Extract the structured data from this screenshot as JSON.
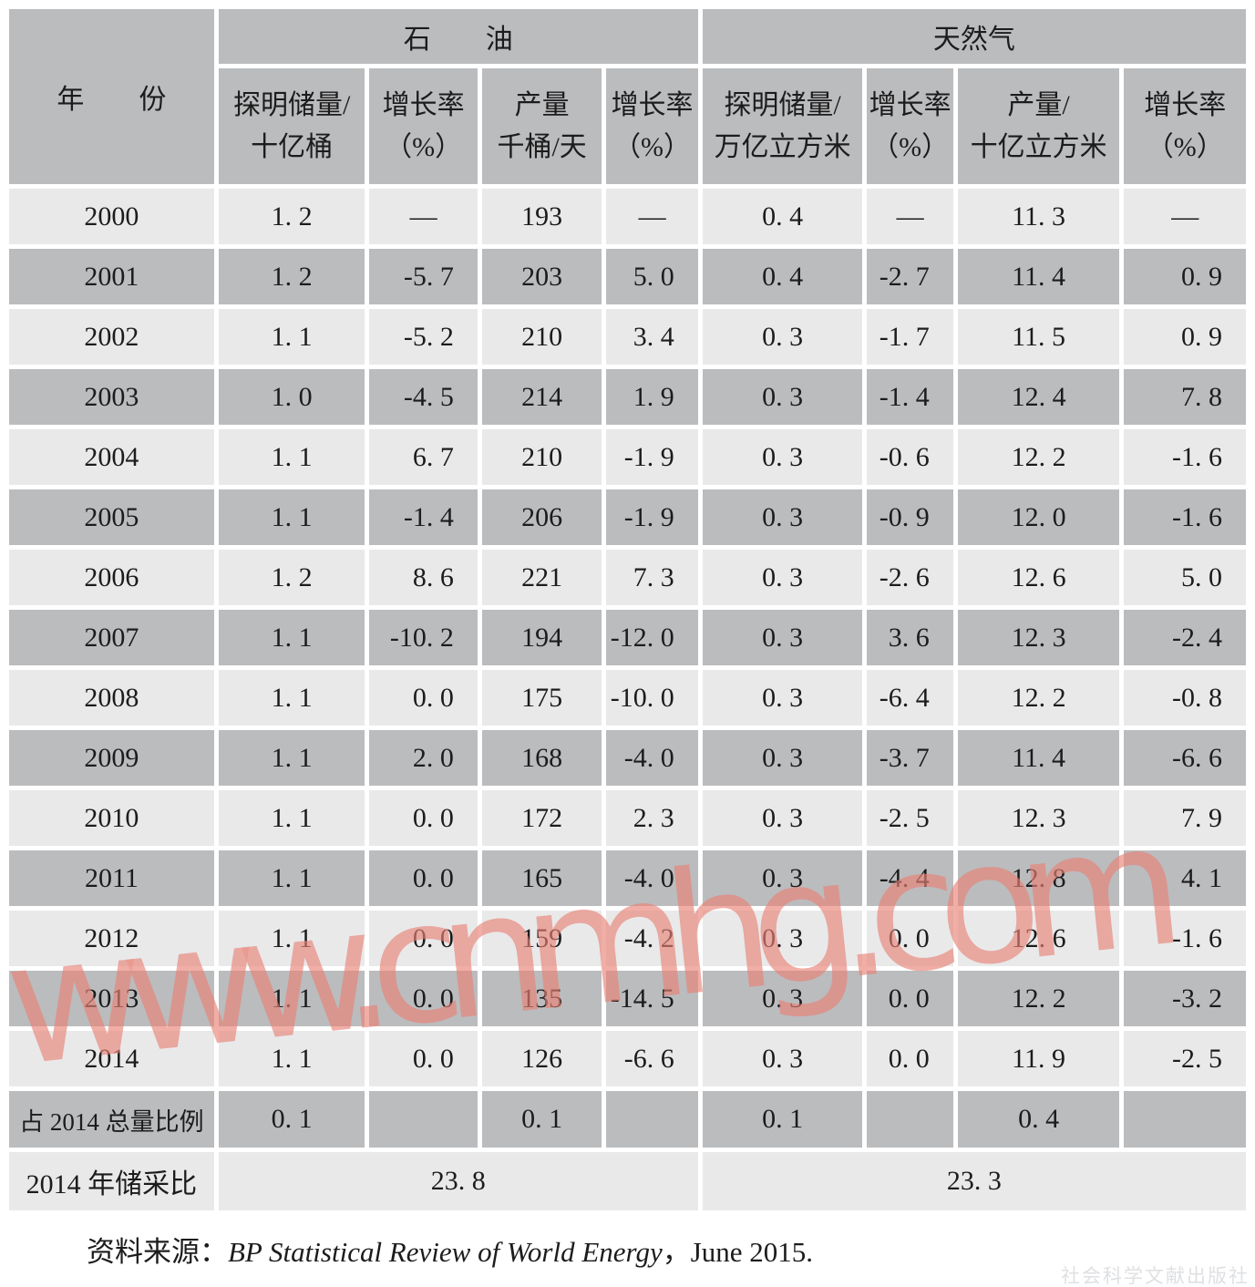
{
  "colors": {
    "dark_cell": "#bbbcbe",
    "light_cell": "#e9e9ea",
    "text": "#1c1c1c",
    "watermark": "rgba(232,130,118,0.8)"
  },
  "table": {
    "header": {
      "year_label": "年　　份",
      "oil_label": "石　　油",
      "gas_label": "天然气",
      "subcols": [
        {
          "line1": "探明储量/",
          "line2": "十亿桶"
        },
        {
          "line1": "增长率",
          "line2": "（%）"
        },
        {
          "line1": "产量",
          "line2": "千桶/天"
        },
        {
          "line1": "增长率",
          "line2": "（%）"
        },
        {
          "line1": "探明储量/",
          "line2": "万亿立方米"
        },
        {
          "line1": "增长率",
          "line2": "（%）"
        },
        {
          "line1": "产量/",
          "line2": "十亿立方米"
        },
        {
          "line1": "增长率",
          "line2": "（%）"
        }
      ]
    },
    "rows": [
      [
        "2000",
        "1. 2",
        "—",
        "193",
        "—",
        "0. 4",
        "—",
        "11. 3",
        "—"
      ],
      [
        "2001",
        "1. 2",
        "-5. 7",
        "203",
        "5. 0",
        "0. 4",
        "-2. 7",
        "11. 4",
        "0. 9"
      ],
      [
        "2002",
        "1. 1",
        "-5. 2",
        "210",
        "3. 4",
        "0. 3",
        "-1. 7",
        "11. 5",
        "0. 9"
      ],
      [
        "2003",
        "1. 0",
        "-4. 5",
        "214",
        "1. 9",
        "0. 3",
        "-1. 4",
        "12. 4",
        "7. 8"
      ],
      [
        "2004",
        "1. 1",
        "6. 7",
        "210",
        "-1. 9",
        "0. 3",
        "-0. 6",
        "12. 2",
        "-1. 6"
      ],
      [
        "2005",
        "1. 1",
        "-1. 4",
        "206",
        "-1. 9",
        "0. 3",
        "-0. 9",
        "12. 0",
        "-1. 6"
      ],
      [
        "2006",
        "1. 2",
        "8. 6",
        "221",
        "7. 3",
        "0. 3",
        "-2. 6",
        "12. 6",
        "5. 0"
      ],
      [
        "2007",
        "1. 1",
        "-10. 2",
        "194",
        "-12. 0",
        "0. 3",
        "3. 6",
        "12. 3",
        "-2. 4"
      ],
      [
        "2008",
        "1. 1",
        "0. 0",
        "175",
        "-10. 0",
        "0. 3",
        "-6. 4",
        "12. 2",
        "-0. 8"
      ],
      [
        "2009",
        "1. 1",
        "2. 0",
        "168",
        "-4. 0",
        "0. 3",
        "-3. 7",
        "11. 4",
        "-6. 6"
      ],
      [
        "2010",
        "1. 1",
        "0. 0",
        "172",
        "2. 3",
        "0. 3",
        "-2. 5",
        "12. 3",
        "7. 9"
      ],
      [
        "2011",
        "1. 1",
        "0. 0",
        "165",
        "-4. 0",
        "0. 3",
        "-4. 4",
        "12. 8",
        "4. 1"
      ],
      [
        "2012",
        "1. 1",
        "0. 0",
        "159",
        "-4. 2",
        "0. 3",
        "0. 0",
        "12. 6",
        "-1. 6"
      ],
      [
        "2013",
        "1. 1",
        "0. 0",
        "135",
        "-14. 5",
        "0. 3",
        "0. 0",
        "12. 2",
        "-3. 2"
      ],
      [
        "2014",
        "1. 1",
        "0. 0",
        "126",
        "-6. 6",
        "0. 3",
        "0. 0",
        "11. 9",
        "-2. 5"
      ]
    ],
    "share_row": {
      "label": "占 2014 总量比例",
      "values": [
        "0. 1",
        "",
        "0. 1",
        "",
        "0. 1",
        "",
        "0. 4",
        ""
      ]
    },
    "ratio_row": {
      "label": "2014 年储采比",
      "oil_value": "23. 8",
      "gas_value": "23. 3"
    }
  },
  "footer": {
    "source_prefix": "资料来源：",
    "source_title": "BP Statistical Review of World Energy",
    "source_suffix": "，June 2015."
  },
  "watermark_text": "www.cnmhg.com",
  "publisher_watermark": "社会科学文献出版社"
}
